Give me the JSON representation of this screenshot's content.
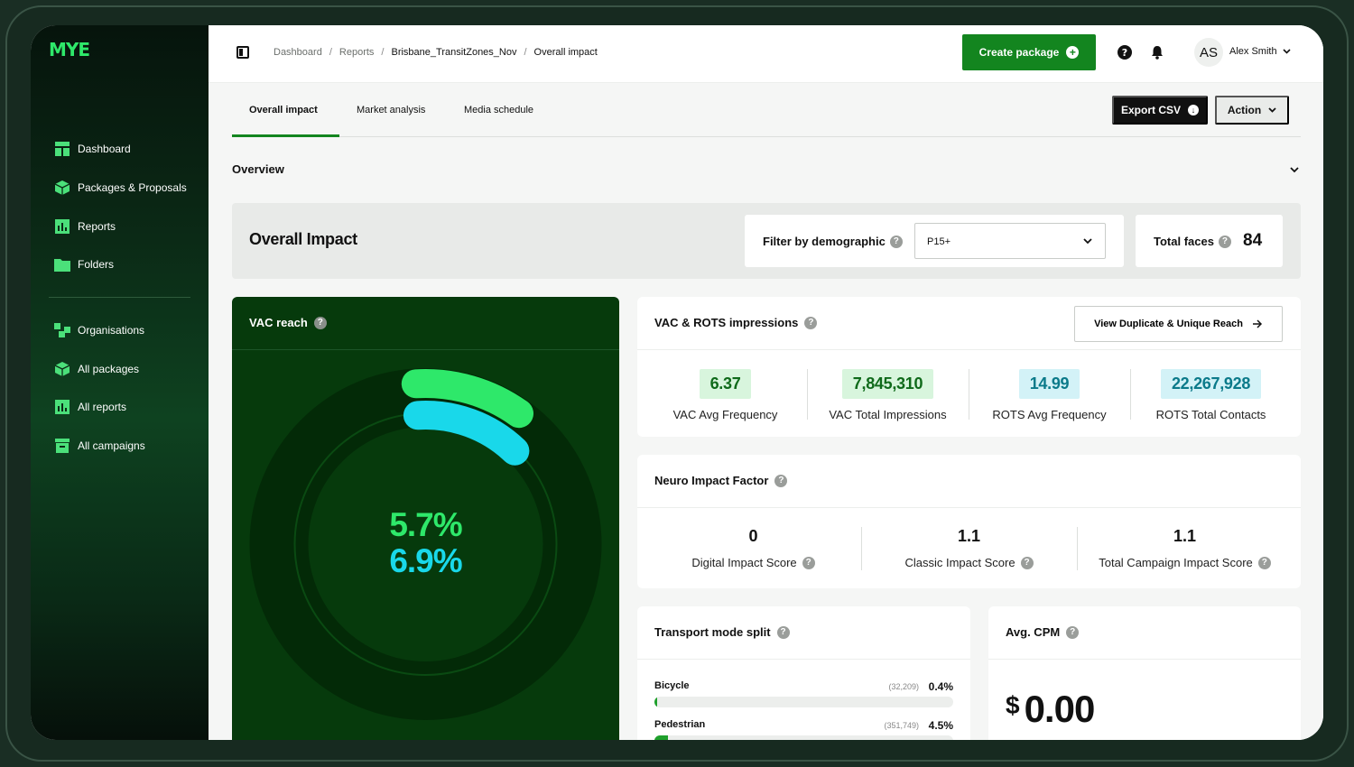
{
  "sidebar": {
    "logo": "MYE",
    "items": [
      {
        "label": "Dashboard",
        "icon": "dashboard-icon"
      },
      {
        "label": "Packages & Proposals",
        "icon": "package-icon"
      },
      {
        "label": "Reports",
        "icon": "reports-icon"
      },
      {
        "label": "Folders",
        "icon": "folder-icon"
      }
    ],
    "admin_items": [
      {
        "label": "Organisations",
        "icon": "organisations-icon"
      },
      {
        "label": "All packages",
        "icon": "package-icon"
      },
      {
        "label": "All reports",
        "icon": "reports-icon"
      },
      {
        "label": "All campaigns",
        "icon": "campaigns-icon"
      }
    ]
  },
  "topbar": {
    "breadcrumb": [
      "Dashboard",
      "Reports",
      "Brisbane_TransitZones_Nov",
      "Overall impact"
    ],
    "create_label": "Create package",
    "avatar_initials": "AS",
    "user_name": "Alex Smith"
  },
  "tabs": [
    "Overall impact",
    "Market analysis",
    "Media schedule"
  ],
  "actions": {
    "export_label": "Export CSV",
    "action_label": "Action"
  },
  "overview_label": "Overview",
  "impact": {
    "title": "Overall Impact",
    "filter_label": "Filter by demographic",
    "filter_value": "P15+",
    "faces_label": "Total faces",
    "faces_value": "84"
  },
  "vac_reach": {
    "title": "VAC reach",
    "value_primary": "5.7%",
    "value_secondary": "6.9%",
    "fraction_primary": 0.057,
    "fraction_secondary": 0.069,
    "color_primary": "#2ee86a",
    "color_secondary": "#19d8ea"
  },
  "impressions": {
    "title": "VAC & ROTS impressions",
    "dup_button": "View Duplicate & Unique Reach",
    "metrics": [
      {
        "value": "6.37",
        "label": "VAC Avg Frequency"
      },
      {
        "value": "7,845,310",
        "label": "VAC Total Impressions"
      },
      {
        "value": "14.99",
        "label": "ROTS Avg Frequency"
      },
      {
        "value": "22,267,928",
        "label": "ROTS Total Contacts"
      }
    ]
  },
  "neuro": {
    "title": "Neuro Impact Factor",
    "scores": [
      {
        "value": "0",
        "label": "Digital Impact Score"
      },
      {
        "value": "1.1",
        "label": "Classic Impact Score"
      },
      {
        "value": "1.1",
        "label": "Total Campaign Impact Score"
      }
    ]
  },
  "transport": {
    "title": "Transport mode split",
    "modes": [
      {
        "name": "Bicycle",
        "count": "(32,209)",
        "pct": "0.4%",
        "fraction": 0.004
      },
      {
        "name": "Pedestrian",
        "count": "(351,749)",
        "pct": "4.5%",
        "fraction": 0.045
      }
    ]
  },
  "cpm": {
    "title": "Avg. CPM",
    "currency": "$",
    "value": "0.00"
  }
}
